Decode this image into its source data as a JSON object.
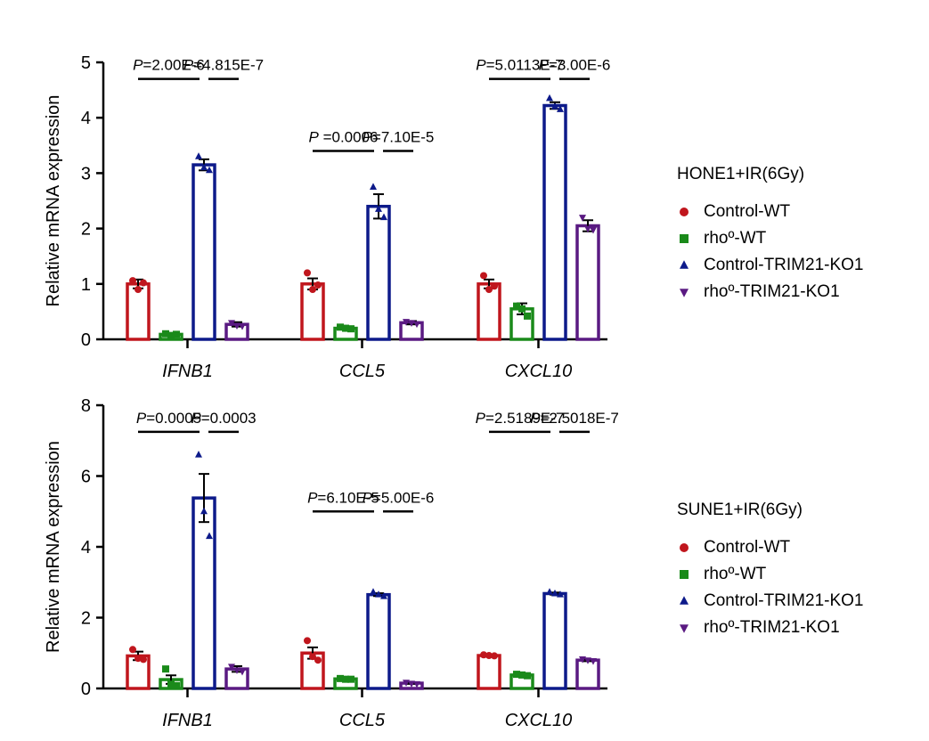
{
  "chart_data": [
    {
      "type": "bar",
      "panel": "top",
      "ylabel": "Relative mRNA expression",
      "ylim": [
        0,
        5
      ],
      "yticks": [
        0,
        1,
        2,
        3,
        4,
        5
      ],
      "categories": [
        "IFNB1",
        "CCL5",
        "CXCL10"
      ],
      "legend_title": "HONE1+IR(6Gy)",
      "series": [
        {
          "name": "Control-WT",
          "color": "#c0161d",
          "marker": "circle",
          "values": [
            1.0,
            1.0,
            1.0
          ],
          "errors": [
            0.08,
            0.1,
            0.08
          ],
          "points": [
            [
              1.06,
              0.9,
              1.02
            ],
            [
              1.2,
              0.9,
              0.98
            ],
            [
              1.15,
              0.9,
              0.96
            ]
          ]
        },
        {
          "name": "rhoº-WT",
          "color": "#1a8a1a",
          "marker": "square",
          "values": [
            0.09,
            0.2,
            0.55
          ],
          "errors": [
            0.02,
            0.02,
            0.1
          ],
          "points": [
            [
              0.1,
              0.07,
              0.09
            ],
            [
              0.22,
              0.2,
              0.19
            ],
            [
              0.6,
              0.55,
              0.42
            ]
          ]
        },
        {
          "name": "Control-TRIM21-KO1",
          "color": "#0d1a8a",
          "marker": "triangle-up",
          "values": [
            3.15,
            2.4,
            4.22
          ],
          "errors": [
            0.1,
            0.22,
            0.06
          ],
          "points": [
            [
              3.3,
              3.1,
              3.05
            ],
            [
              2.75,
              2.35,
              2.2
            ],
            [
              4.35,
              4.2,
              4.15
            ]
          ]
        },
        {
          "name": "rhoº-TRIM21-KO1",
          "color": "#5a1a82",
          "marker": "triangle-down",
          "values": [
            0.27,
            0.3,
            2.05
          ],
          "errors": [
            0.04,
            0.03,
            0.1
          ],
          "points": [
            [
              0.3,
              0.25,
              0.24
            ],
            [
              0.32,
              0.3,
              0.28
            ],
            [
              2.2,
              2.0,
              1.98
            ]
          ]
        }
      ],
      "annotations": [
        {
          "text": "P=2.00E-6",
          "category": 0,
          "from": 0,
          "to": 2,
          "y": 4.7
        },
        {
          "text": "P=4.815E-7",
          "category": 0,
          "from": 2,
          "to": 3,
          "y": 4.7
        },
        {
          "text": "P =0.0006",
          "category": 1,
          "from": 0,
          "to": 2,
          "y": 3.4
        },
        {
          "text": "P=7.10E-5",
          "category": 1,
          "from": 2,
          "to": 3,
          "y": 3.4
        },
        {
          "text": "P=5.0113E-7",
          "category": 2,
          "from": 0,
          "to": 2,
          "y": 4.7
        },
        {
          "text": "P=3.00E-6",
          "category": 2,
          "from": 2,
          "to": 3,
          "y": 4.7
        }
      ]
    },
    {
      "type": "bar",
      "panel": "bottom",
      "ylabel": "Relative mRNA expression",
      "ylim": [
        0,
        8
      ],
      "yticks": [
        0,
        2,
        4,
        6,
        8
      ],
      "categories": [
        "IFNB1",
        "CCL5",
        "CXCL10"
      ],
      "legend_title": "SUNE1+IR(6Gy)",
      "series": [
        {
          "name": "Control-WT",
          "color": "#c0161d",
          "marker": "circle",
          "values": [
            0.92,
            1.0,
            0.93
          ],
          "errors": [
            0.12,
            0.16,
            0.03
          ],
          "points": [
            [
              1.1,
              0.85,
              0.82
            ],
            [
              1.35,
              0.9,
              0.8
            ],
            [
              0.95,
              0.93,
              0.92
            ]
          ]
        },
        {
          "name": "rhoº-WT",
          "color": "#1a8a1a",
          "marker": "square",
          "values": [
            0.25,
            0.27,
            0.38
          ],
          "errors": [
            0.12,
            0.02,
            0.02
          ],
          "points": [
            [
              0.55,
              0.12,
              0.08
            ],
            [
              0.28,
              0.26,
              0.26
            ],
            [
              0.4,
              0.38,
              0.36
            ]
          ]
        },
        {
          "name": "Control-TRIM21-KO1",
          "color": "#0d1a8a",
          "marker": "triangle-up",
          "values": [
            5.38,
            2.65,
            2.68
          ],
          "errors": [
            0.68,
            0.04,
            0.03
          ],
          "points": [
            [
              6.6,
              5.0,
              4.3
            ],
            [
              2.72,
              2.65,
              2.6
            ],
            [
              2.72,
              2.68,
              2.65
            ]
          ]
        },
        {
          "name": "rhoº-TRIM21-KO1",
          "color": "#5a1a82",
          "marker": "triangle-down",
          "values": [
            0.55,
            0.15,
            0.8
          ],
          "errors": [
            0.08,
            0.02,
            0.03
          ],
          "points": [
            [
              0.62,
              0.52,
              0.48
            ],
            [
              0.17,
              0.14,
              0.13
            ],
            [
              0.83,
              0.8,
              0.78
            ]
          ]
        }
      ],
      "annotations": [
        {
          "text": "P=0.0005",
          "category": 0,
          "from": 0,
          "to": 2,
          "y": 7.25
        },
        {
          "text": "P=0.0003",
          "category": 0,
          "from": 2,
          "to": 3,
          "y": 7.25
        },
        {
          "text": "P=6.10E-5",
          "category": 1,
          "from": 0,
          "to": 2,
          "y": 5.0
        },
        {
          "text": "P=5.00E-6",
          "category": 1,
          "from": 2,
          "to": 3,
          "y": 5.0
        },
        {
          "text": "P=2.5189E-7",
          "category": 2,
          "from": 0,
          "to": 2,
          "y": 7.25
        },
        {
          "text": "P=2.5018E-7",
          "category": 2,
          "from": 2,
          "to": 3,
          "y": 7.25
        }
      ]
    }
  ]
}
